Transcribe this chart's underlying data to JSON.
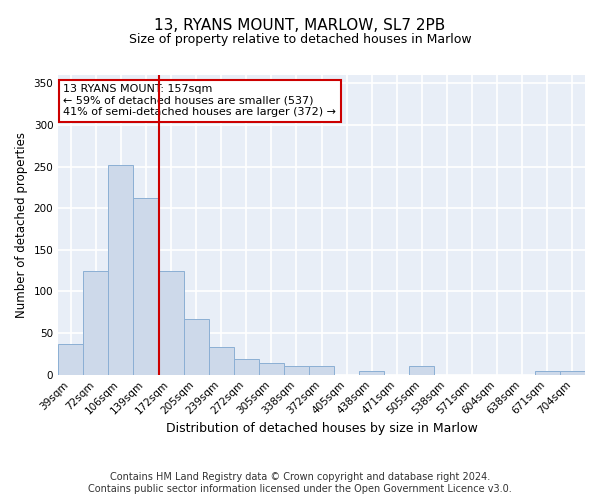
{
  "title": "13, RYANS MOUNT, MARLOW, SL7 2PB",
  "subtitle": "Size of property relative to detached houses in Marlow",
  "xlabel": "Distribution of detached houses by size in Marlow",
  "ylabel": "Number of detached properties",
  "bar_labels": [
    "39sqm",
    "72sqm",
    "106sqm",
    "139sqm",
    "172sqm",
    "205sqm",
    "239sqm",
    "272sqm",
    "305sqm",
    "338sqm",
    "372sqm",
    "405sqm",
    "438sqm",
    "471sqm",
    "505sqm",
    "538sqm",
    "571sqm",
    "604sqm",
    "638sqm",
    "671sqm",
    "704sqm"
  ],
  "bar_values": [
    37,
    124,
    252,
    212,
    124,
    67,
    33,
    19,
    14,
    10,
    10,
    0,
    4,
    0,
    10,
    0,
    0,
    0,
    0,
    4,
    4
  ],
  "bar_color": "#cdd9ea",
  "bar_edge_color": "#8bafd4",
  "ylim": [
    0,
    360
  ],
  "yticks": [
    0,
    50,
    100,
    150,
    200,
    250,
    300,
    350
  ],
  "vline_x": 3.5,
  "vline_color": "#cc0000",
  "annotation_text": "13 RYANS MOUNT: 157sqm\n← 59% of detached houses are smaller (537)\n41% of semi-detached houses are larger (372) →",
  "annotation_box_color": "#ffffff",
  "annotation_box_edge_color": "#cc0000",
  "footer1": "Contains HM Land Registry data © Crown copyright and database right 2024.",
  "footer2": "Contains public sector information licensed under the Open Government Licence v3.0.",
  "fig_background_color": "#ffffff",
  "plot_bg_color": "#e8eef7",
  "grid_color": "#ffffff",
  "title_fontsize": 11,
  "subtitle_fontsize": 9,
  "footer_fontsize": 7,
  "annot_fontsize": 8
}
